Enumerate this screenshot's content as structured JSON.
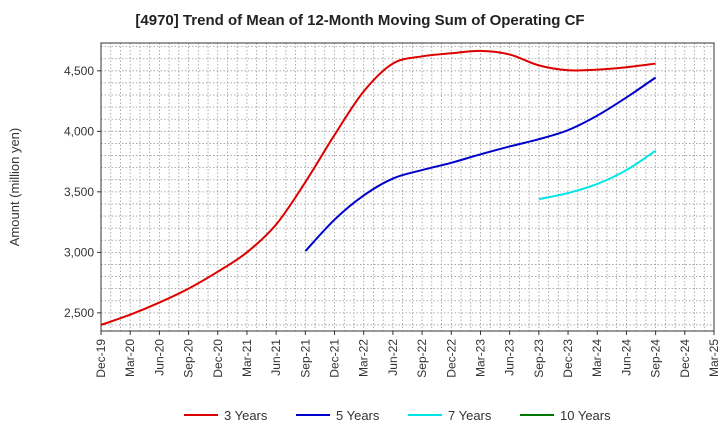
{
  "chart_data": {
    "type": "line",
    "title": "[4970]  Trend of Mean of 12-Month Moving Sum of Operating CF",
    "xlabel": "",
    "ylabel": "Amount (million yen)",
    "ylim": [
      2350,
      4730
    ],
    "yticks": [
      2500,
      3000,
      3500,
      4000,
      4500
    ],
    "ytick_labels": [
      "2,500",
      "3,000",
      "3,500",
      "4,000",
      "4,500"
    ],
    "x_categories": [
      "Dec-19",
      "Mar-20",
      "Jun-20",
      "Sep-20",
      "Dec-20",
      "Mar-21",
      "Jun-21",
      "Sep-21",
      "Dec-21",
      "Mar-22",
      "Jun-22",
      "Sep-22",
      "Dec-22",
      "Mar-23",
      "Jun-23",
      "Sep-23",
      "Dec-23",
      "Mar-24",
      "Jun-24",
      "Sep-24",
      "Dec-24",
      "Mar-25"
    ],
    "grid": true,
    "legend_position": "bottom",
    "series": [
      {
        "name": "3 Years",
        "color": "#dd0000",
        "x": [
          "Dec-19",
          "Mar-20",
          "Jun-20",
          "Sep-20",
          "Dec-20",
          "Mar-21",
          "Jun-21",
          "Sep-21",
          "Dec-21",
          "Mar-22",
          "Jun-22",
          "Sep-22",
          "Dec-22",
          "Mar-23",
          "Jun-23",
          "Sep-23",
          "Dec-23",
          "Mar-24",
          "Jun-24",
          "Sep-24"
        ],
        "values": [
          2400,
          2485,
          2585,
          2700,
          2840,
          3000,
          3230,
          3580,
          3970,
          4330,
          4560,
          4620,
          4645,
          4665,
          4635,
          4545,
          4505,
          4510,
          4530,
          4560
        ]
      },
      {
        "name": "5 Years",
        "color": "#0000cc",
        "x": [
          "Sep-21",
          "Dec-21",
          "Mar-22",
          "Jun-22",
          "Sep-22",
          "Dec-22",
          "Mar-23",
          "Jun-23",
          "Sep-23",
          "Dec-23",
          "Mar-24",
          "Jun-24",
          "Sep-24"
        ],
        "values": [
          3010,
          3270,
          3470,
          3610,
          3680,
          3740,
          3810,
          3875,
          3935,
          4010,
          4130,
          4280,
          4445
        ]
      },
      {
        "name": "7 Years",
        "color": "#00e5e5",
        "x": [
          "Sep-23",
          "Dec-23",
          "Mar-24",
          "Jun-24",
          "Sep-24"
        ],
        "values": [
          3440,
          3490,
          3565,
          3680,
          3840
        ]
      },
      {
        "name": "10 Years",
        "color": "#007700",
        "x": [],
        "values": []
      }
    ]
  }
}
